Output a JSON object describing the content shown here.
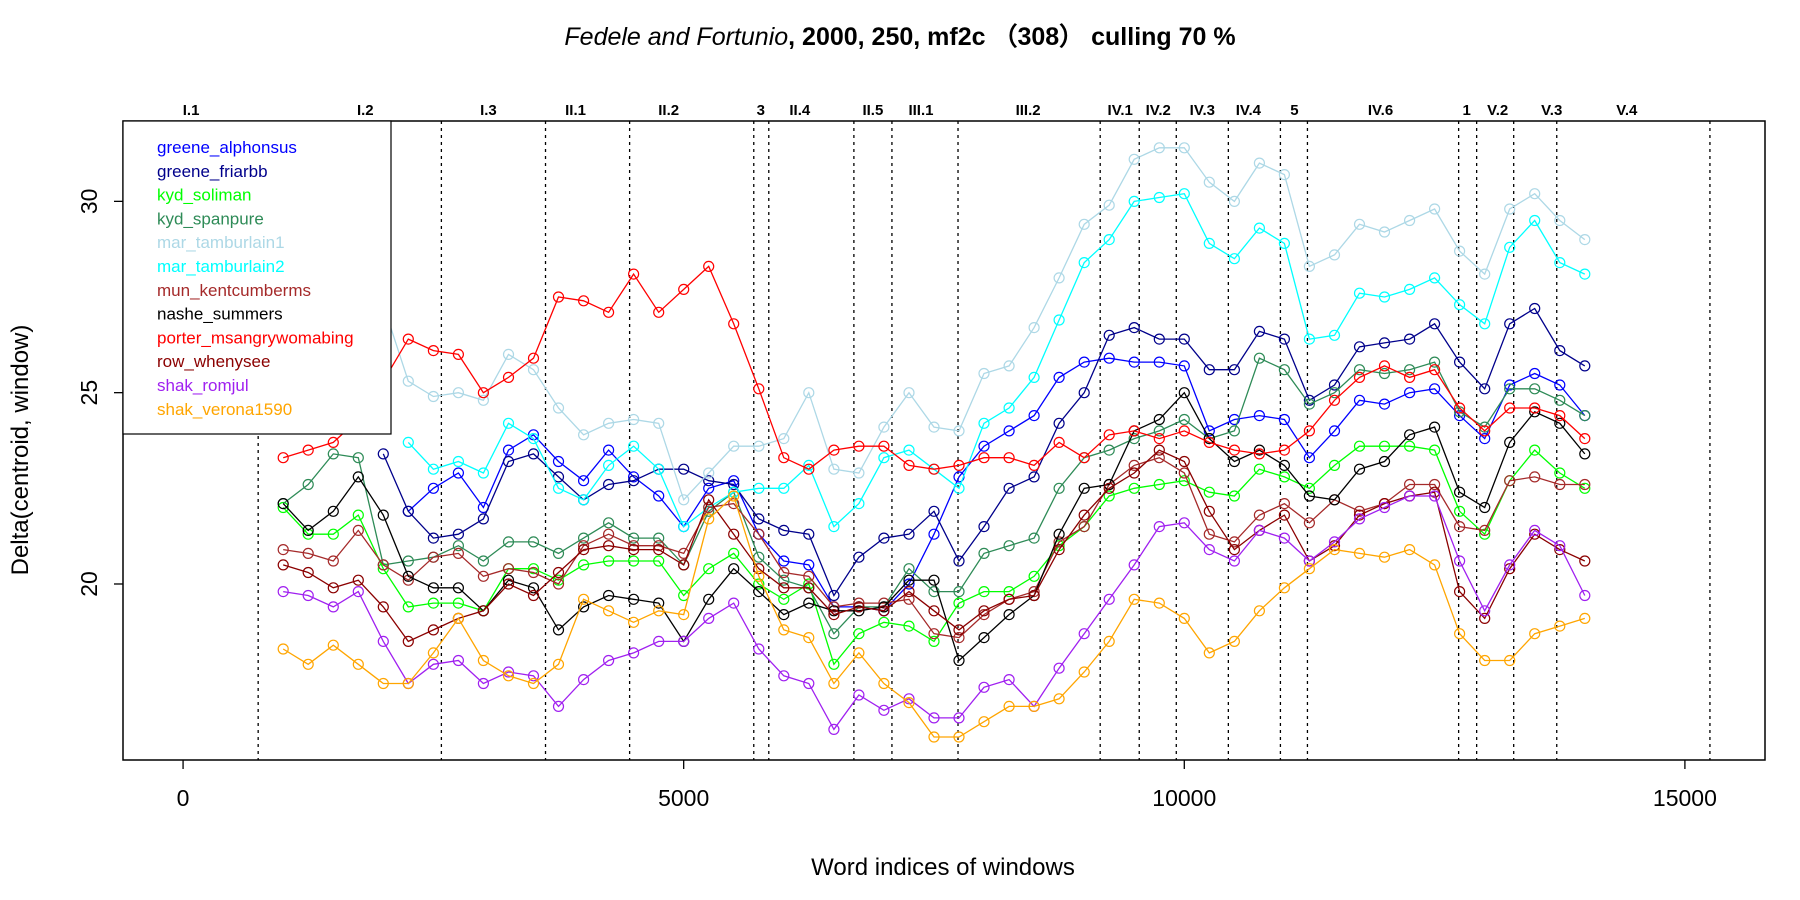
{
  "chart_data": {
    "type": "line",
    "title": {
      "play": "Fedele and Fortunio",
      "params": ",  2000, 250, mf2c （308） culling 70 %"
    },
    "xlabel": "Word indices of windows",
    "ylabel": "Delta(centroid, window)",
    "xlim": [
      -600,
      15800
    ],
    "ylim": [
      15.4,
      32.1
    ],
    "x_ticks": [
      0,
      5000,
      10000,
      15000
    ],
    "x_tick_labels": [
      "0",
      "5000",
      "10000",
      "15000"
    ],
    "y_ticks": [
      20,
      25,
      30
    ],
    "y_tick_labels": [
      "20",
      "25",
      "30"
    ],
    "legend_position": "top-left",
    "scene_boundaries": [
      750,
      2580,
      3620,
      4460,
      5700,
      5850,
      6700,
      7080,
      7740,
      9160,
      9550,
      9920,
      10440,
      10960,
      11230,
      12740,
      12920,
      13290,
      13720,
      15250
    ],
    "scenes": [
      {
        "label": "I.1",
        "x": 80
      },
      {
        "label": "I.2",
        "x": 1820
      },
      {
        "label": "I.3",
        "x": 3050
      },
      {
        "label": "II.1",
        "x": 3920
      },
      {
        "label": "II.2",
        "x": 4850
      },
      {
        "label": "3",
        "x": 5770
      },
      {
        "label": "II.4",
        "x": 6160
      },
      {
        "label": "II.5",
        "x": 6890
      },
      {
        "label": "III.1",
        "x": 7370
      },
      {
        "label": "III.2",
        "x": 8440
      },
      {
        "label": "IV.1",
        "x": 9360
      },
      {
        "label": "IV.2",
        "x": 9740
      },
      {
        "label": "IV.3",
        "x": 10180
      },
      {
        "label": "IV.4",
        "x": 10640
      },
      {
        "label": "5",
        "x": 11100
      },
      {
        "label": "IV.6",
        "x": 11960
      },
      {
        "label": "1",
        "x": 12820
      },
      {
        "label": "V.2",
        "x": 13130
      },
      {
        "label": "V.3",
        "x": 13670
      },
      {
        "label": "V.4",
        "x": 14420
      }
    ],
    "x": [
      1000,
      1250,
      1500,
      1750,
      2000,
      2250,
      2500,
      2750,
      3000,
      3250,
      3500,
      3750,
      4000,
      4250,
      4500,
      4750,
      5000,
      5250,
      5500,
      5750,
      6000,
      6250,
      6500,
      6750,
      7000,
      7250,
      7500,
      7750,
      8000,
      8250,
      8500,
      8750,
      9000,
      9250,
      9500,
      9750,
      10000,
      10250,
      10500,
      10750,
      11000,
      11250,
      11500,
      11750,
      12000,
      12250,
      12500,
      12750,
      13000,
      13250,
      13500,
      13750,
      14000
    ],
    "series": [
      {
        "name": "greene_alphonsus",
        "color": "#0000ff",
        "values": [
          null,
          null,
          null,
          null,
          null,
          21.9,
          22.5,
          22.9,
          22.0,
          23.5,
          23.9,
          23.2,
          22.7,
          23.5,
          22.8,
          22.3,
          21.5,
          22.5,
          22.7,
          21.3,
          20.6,
          20.5,
          19.4,
          19.4,
          19.3,
          20.0,
          21.3,
          22.8,
          23.6,
          24.0,
          24.4,
          25.4,
          25.8,
          25.9,
          25.8,
          25.8,
          25.7,
          24.0,
          24.3,
          24.4,
          24.3,
          23.3,
          24.0,
          24.8,
          24.7,
          25.0,
          25.1,
          24.4,
          23.8,
          25.2,
          25.5,
          25.2,
          24.4
        ]
      },
      {
        "name": "greene_friarbb",
        "color": "#00008b",
        "values": [
          null,
          null,
          null,
          null,
          23.4,
          21.9,
          21.2,
          21.3,
          21.7,
          23.2,
          23.4,
          22.8,
          22.2,
          22.6,
          22.7,
          23.0,
          23.0,
          22.7,
          22.6,
          21.7,
          21.4,
          21.3,
          19.7,
          20.7,
          21.2,
          21.3,
          21.9,
          20.6,
          21.5,
          22.5,
          22.8,
          24.2,
          25.0,
          26.5,
          26.7,
          26.4,
          26.4,
          25.6,
          25.6,
          26.6,
          26.4,
          24.8,
          25.2,
          26.2,
          26.3,
          26.4,
          26.8,
          25.8,
          25.1,
          26.8,
          27.2,
          26.1,
          25.7
        ]
      },
      {
        "name": "kyd_soliman",
        "color": "#00ff00",
        "values": [
          22.0,
          21.3,
          21.3,
          21.8,
          20.4,
          19.4,
          19.5,
          19.5,
          19.3,
          20.4,
          20.4,
          20.1,
          20.5,
          20.6,
          20.6,
          20.6,
          19.7,
          20.4,
          20.8,
          20.0,
          19.6,
          20.0,
          17.9,
          18.7,
          19.0,
          18.9,
          18.5,
          19.5,
          19.8,
          19.8,
          20.2,
          21.0,
          21.5,
          22.3,
          22.5,
          22.6,
          22.7,
          22.4,
          22.3,
          23.0,
          22.8,
          22.5,
          23.1,
          23.6,
          23.6,
          23.6,
          23.5,
          21.9,
          21.3,
          22.7,
          23.5,
          22.9,
          22.5
        ]
      },
      {
        "name": "kyd_spanpure",
        "color": "#2e8b57",
        "values": [
          22.1,
          22.6,
          23.4,
          23.3,
          20.5,
          20.6,
          20.7,
          21.0,
          20.6,
          21.1,
          21.1,
          20.8,
          21.2,
          21.6,
          21.2,
          21.2,
          20.5,
          21.9,
          22.4,
          20.7,
          20.1,
          19.9,
          18.7,
          19.4,
          19.4,
          20.4,
          19.8,
          19.8,
          20.8,
          21.0,
          21.2,
          22.5,
          23.3,
          23.5,
          23.8,
          24.0,
          24.3,
          23.8,
          24.0,
          25.9,
          25.6,
          24.7,
          25.0,
          25.6,
          25.5,
          25.6,
          25.8,
          24.5,
          24.1,
          25.1,
          25.1,
          24.8,
          24.4
        ]
      },
      {
        "name": "mar_tamburlain1",
        "color": "#add8e6",
        "values": [
          null,
          null,
          null,
          null,
          27.3,
          25.3,
          24.9,
          25.0,
          24.8,
          26.0,
          25.6,
          24.6,
          23.9,
          24.2,
          24.3,
          24.2,
          22.2,
          22.9,
          23.6,
          23.6,
          23.8,
          25.0,
          23.0,
          22.9,
          24.1,
          25.0,
          24.1,
          24.0,
          25.5,
          25.7,
          26.7,
          28.0,
          29.4,
          29.9,
          31.1,
          31.4,
          31.4,
          30.5,
          30.0,
          31.0,
          30.7,
          28.3,
          28.6,
          29.4,
          29.2,
          29.5,
          29.8,
          28.7,
          28.1,
          29.8,
          30.2,
          29.5,
          29.0
        ]
      },
      {
        "name": "mar_tamburlain2",
        "color": "#00ffff",
        "values": [
          null,
          null,
          null,
          null,
          null,
          23.7,
          23.0,
          23.2,
          22.9,
          24.2,
          23.8,
          22.5,
          22.2,
          23.1,
          23.6,
          23.0,
          21.5,
          22.0,
          22.4,
          22.5,
          22.5,
          23.1,
          21.5,
          22.1,
          23.3,
          23.5,
          23.0,
          22.5,
          24.2,
          24.6,
          25.4,
          26.9,
          28.4,
          29.0,
          30.0,
          30.1,
          30.2,
          28.9,
          28.5,
          29.3,
          28.9,
          26.4,
          26.5,
          27.6,
          27.5,
          27.7,
          28.0,
          27.3,
          26.8,
          28.8,
          29.5,
          28.4,
          28.1
        ]
      },
      {
        "name": "mun_kentcumberms",
        "color": "#a52a2a",
        "values": [
          20.9,
          20.8,
          20.6,
          21.4,
          20.5,
          20.1,
          20.7,
          20.8,
          20.2,
          20.4,
          20.3,
          20.0,
          21.0,
          21.3,
          21.0,
          21.0,
          20.8,
          22.0,
          22.1,
          21.3,
          20.3,
          20.2,
          19.4,
          19.5,
          19.5,
          19.6,
          18.7,
          18.6,
          19.2,
          19.6,
          19.8,
          21.1,
          21.5,
          22.6,
          23.1,
          23.3,
          22.9,
          21.3,
          21.1,
          21.8,
          22.1,
          21.6,
          22.2,
          21.9,
          22.1,
          22.6,
          22.6,
          21.5,
          21.4,
          22.7,
          22.8,
          22.6,
          22.6
        ]
      },
      {
        "name": "nashe_summers",
        "color": "#000000",
        "values": [
          22.1,
          21.4,
          21.9,
          22.8,
          21.8,
          20.2,
          19.9,
          19.9,
          19.3,
          20.1,
          19.9,
          18.8,
          19.4,
          19.7,
          19.6,
          19.5,
          18.5,
          19.6,
          20.4,
          19.8,
          19.2,
          19.5,
          19.3,
          19.3,
          19.4,
          20.1,
          20.1,
          18.0,
          18.6,
          19.2,
          19.7,
          21.3,
          22.5,
          22.6,
          24.0,
          24.3,
          25.0,
          23.8,
          23.2,
          23.5,
          23.1,
          22.3,
          22.2,
          23.0,
          23.2,
          23.9,
          24.1,
          22.4,
          22.0,
          23.7,
          24.5,
          24.2,
          23.4
        ]
      },
      {
        "name": "porter_msangrywomabing",
        "color": "#ff0000",
        "values": [
          23.3,
          23.5,
          23.7,
          24.3,
          25.3,
          26.4,
          26.1,
          26.0,
          25.0,
          25.4,
          25.9,
          27.5,
          27.4,
          27.1,
          28.1,
          27.1,
          27.7,
          28.3,
          26.8,
          25.1,
          23.3,
          23.0,
          23.5,
          23.6,
          23.6,
          23.1,
          23.0,
          23.1,
          23.3,
          23.3,
          23.1,
          23.7,
          23.3,
          23.9,
          24.0,
          23.8,
          24.0,
          23.7,
          23.5,
          23.4,
          23.5,
          24.0,
          24.8,
          25.4,
          25.7,
          25.4,
          25.6,
          24.6,
          24.0,
          24.6,
          24.6,
          24.4,
          23.8
        ]
      },
      {
        "name": "row_whenysee",
        "color": "#8b0000",
        "values": [
          20.5,
          20.3,
          19.9,
          20.1,
          19.4,
          18.5,
          18.8,
          19.1,
          19.3,
          20.0,
          19.7,
          20.3,
          20.9,
          21.0,
          20.9,
          20.9,
          20.5,
          22.2,
          21.3,
          20.4,
          19.9,
          19.9,
          19.2,
          19.4,
          19.3,
          19.8,
          19.3,
          18.8,
          19.3,
          19.6,
          19.7,
          20.9,
          21.8,
          22.5,
          22.9,
          23.5,
          23.2,
          21.9,
          20.9,
          21.4,
          21.8,
          20.6,
          21.0,
          21.8,
          22.1,
          22.3,
          22.4,
          19.8,
          19.1,
          20.4,
          21.3,
          20.9,
          20.6
        ]
      },
      {
        "name": "shak_romjul",
        "color": "#a020f0",
        "values": [
          19.8,
          19.7,
          19.4,
          19.8,
          18.5,
          17.4,
          17.9,
          18.0,
          17.4,
          17.7,
          17.6,
          16.8,
          17.5,
          18.0,
          18.2,
          18.5,
          18.5,
          19.1,
          19.5,
          18.3,
          17.6,
          17.4,
          16.2,
          17.1,
          16.7,
          17.0,
          16.5,
          16.5,
          17.3,
          17.5,
          16.8,
          17.8,
          18.7,
          19.6,
          20.5,
          21.5,
          21.6,
          20.9,
          20.6,
          21.4,
          21.2,
          20.6,
          21.1,
          21.7,
          22.0,
          22.3,
          22.3,
          20.6,
          19.3,
          20.5,
          21.4,
          21.0,
          19.7
        ]
      },
      {
        "name": "shak_verona1590",
        "color": "#ffa500",
        "values": [
          18.3,
          17.9,
          18.4,
          17.9,
          17.4,
          17.4,
          18.2,
          19.1,
          18.0,
          17.6,
          17.4,
          17.9,
          19.6,
          19.3,
          19.0,
          19.3,
          19.2,
          21.7,
          22.3,
          20.2,
          18.8,
          18.6,
          17.4,
          18.2,
          17.4,
          16.9,
          16.0,
          16.0,
          16.4,
          16.8,
          16.8,
          17.0,
          17.7,
          18.5,
          19.6,
          19.5,
          19.1,
          18.2,
          18.5,
          19.3,
          19.9,
          20.4,
          20.9,
          20.8,
          20.7,
          20.9,
          20.5,
          18.7,
          18.0,
          18.0,
          18.7,
          18.9,
          19.1
        ]
      }
    ]
  }
}
